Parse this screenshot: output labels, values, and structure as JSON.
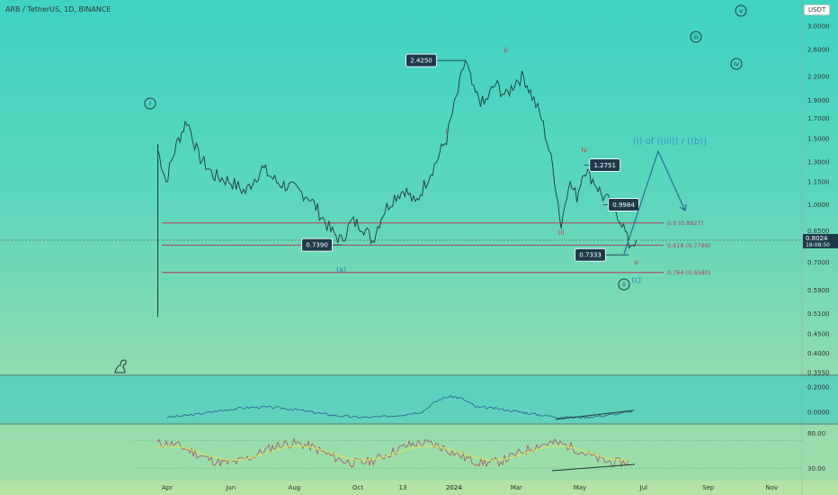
{
  "ticker": "ARB / TetherUS, 1D, BINANCE",
  "currency": "USDT",
  "chart_data": [
    {
      "type": "line",
      "title": "ARB / TetherUS, 1D, BINANCE",
      "ylim": [
        0.355,
        3.3
      ],
      "yscale": "log",
      "y_ticks": [
        "3.0000",
        "2.6000",
        "2.2000",
        "1.9000",
        "1.7000",
        "1.5000",
        "1.3000",
        "1.1500",
        "1.0000",
        "0.8500",
        "0.7000",
        "0.5900",
        "0.5100",
        "0.4500",
        "0.4000",
        "0.3550"
      ],
      "x_ticks": [
        "Apr",
        "Jun",
        "Aug",
        "Oct",
        "13",
        "2024",
        "Mar",
        "May",
        "Jul",
        "Sep",
        "Nov"
      ],
      "x": [
        "2023-03-23",
        "2023-03-31",
        "2023-04-10",
        "2023-04-20",
        "2023-05-01",
        "2023-05-15",
        "2023-06-01",
        "2023-06-15",
        "2023-07-01",
        "2023-07-15",
        "2023-08-01",
        "2023-08-15",
        "2023-08-25",
        "2023-09-05",
        "2023-09-15",
        "2023-09-25",
        "2023-10-05",
        "2023-10-15",
        "2023-10-25",
        "2023-11-05",
        "2023-11-15",
        "2023-11-25",
        "2023-12-05",
        "2023-12-15",
        "2023-12-25",
        "2024-01-05",
        "2024-01-12",
        "2024-01-20",
        "2024-01-30",
        "2024-02-10",
        "2024-02-20",
        "2024-03-01",
        "2024-03-08",
        "2024-03-16",
        "2024-03-25",
        "2024-04-05",
        "2024-04-13",
        "2024-04-20",
        "2024-04-28",
        "2024-05-05",
        "2024-05-15",
        "2024-05-23",
        "2024-06-01",
        "2024-06-10",
        "2024-06-17",
        "2024-06-24"
      ],
      "series": [
        {
          "values": [
            1.4,
            1.15,
            1.45,
            1.68,
            1.35,
            1.2,
            1.15,
            1.08,
            1.25,
            1.15,
            1.1,
            1.05,
            0.95,
            0.85,
            0.8,
            0.9,
            0.88,
            0.8,
            0.95,
            1.05,
            1.1,
            1.0,
            1.15,
            1.3,
            1.5,
            2.0,
            2.43,
            2.0,
            1.85,
            2.1,
            1.95,
            2.15,
            2.2,
            1.95,
            1.7,
            1.25,
            0.87,
            1.15,
            1.05,
            1.25,
            1.15,
            1.05,
            1.0,
            0.9,
            0.78,
            0.8024
          ]
        }
      ],
      "levels": [
        {
          "label": "0.5 (0.8927)",
          "value": 0.8927
        },
        {
          "label": "0.618 (0.7789)",
          "value": 0.7789
        },
        {
          "label": "0.764 (0.6580)",
          "value": 0.658
        }
      ],
      "price_badges": [
        "2.4250",
        "0.7390",
        "1.2751",
        "0.9984",
        "0.7333"
      ],
      "current_price": "0.8024",
      "countdown": "18:08:50",
      "wave_labels_red": [
        "i",
        "ii",
        "iii",
        "iv",
        "v"
      ],
      "wave_labels_blue": [
        "(a)",
        "(c)"
      ],
      "wave_labels_circled": [
        "i",
        "ii",
        "iii",
        "iv",
        "v"
      ],
      "projection_label": "(i) of ((iii)) / ((b))"
    },
    {
      "type": "line",
      "title": "",
      "ylim": [
        -0.07,
        0.27
      ],
      "y_ticks": [
        "0.2000",
        "0.0000"
      ]
    },
    {
      "type": "line",
      "title": "",
      "ylim": [
        15,
        90
      ],
      "y_ticks": [
        "80.00",
        "30.00"
      ]
    }
  ]
}
